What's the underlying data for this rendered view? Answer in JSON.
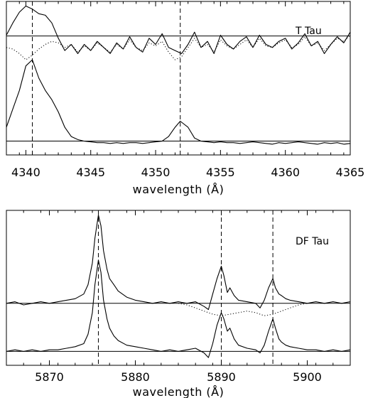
{
  "chart_data": [
    {
      "type": "line",
      "title": "",
      "label": "T Tau",
      "xlabel": "wavelength (Å)",
      "ylabel": "",
      "xlim": [
        4338.5,
        4365
      ],
      "ylim": [
        0,
        1
      ],
      "xticks": [
        4340,
        4345,
        4350,
        4355,
        4360,
        4365
      ],
      "xtick_labels": [
        "4340",
        "4345",
        "4350",
        "4355",
        "4360",
        "4365"
      ],
      "vlines": [
        4340.5,
        4351.9
      ],
      "hlines": [
        0.775,
        0.09
      ],
      "grid": false,
      "legend": "none",
      "series": [
        {
          "style": "solid",
          "x": [
            4338.5,
            4339.0,
            4339.5,
            4340.0,
            4340.5,
            4341.0,
            4341.5,
            4342.0,
            4342.5,
            4343.0,
            4343.5,
            4344.0,
            4344.5,
            4345.0,
            4345.5,
            4346.0,
            4346.5,
            4347.0,
            4347.5,
            4348.0,
            4348.5,
            4349.0,
            4349.5,
            4350.0,
            4350.5,
            4351.0,
            4351.5,
            4352.0,
            4352.5,
            4353.0,
            4353.5,
            4354.0,
            4354.5,
            4355.0,
            4355.5,
            4356.0,
            4356.5,
            4357.0,
            4357.5,
            4358.0,
            4358.5,
            4359.0,
            4359.5,
            4360.0,
            4360.5,
            4361.0,
            4361.5,
            4362.0,
            4362.5,
            4363.0,
            4363.5,
            4364.0,
            4364.5,
            4365.0
          ],
          "y": [
            0.78,
            0.86,
            0.93,
            0.97,
            0.95,
            0.92,
            0.91,
            0.86,
            0.76,
            0.68,
            0.72,
            0.66,
            0.72,
            0.68,
            0.74,
            0.7,
            0.66,
            0.73,
            0.69,
            0.77,
            0.7,
            0.67,
            0.76,
            0.72,
            0.79,
            0.7,
            0.68,
            0.66,
            0.72,
            0.8,
            0.7,
            0.74,
            0.66,
            0.78,
            0.72,
            0.69,
            0.74,
            0.77,
            0.7,
            0.78,
            0.72,
            0.7,
            0.74,
            0.76,
            0.69,
            0.73,
            0.79,
            0.71,
            0.74,
            0.66,
            0.72,
            0.77,
            0.73,
            0.8
          ]
        },
        {
          "style": "dotted",
          "x": [
            4338.5,
            4339.0,
            4339.5,
            4340.0,
            4340.5,
            4341.0,
            4341.5,
            4342.0,
            4342.5,
            4343.0,
            4343.5,
            4344.0,
            4344.5,
            4345.0,
            4345.5,
            4346.0,
            4346.5,
            4347.0,
            4347.5,
            4348.0,
            4348.5,
            4349.0,
            4349.5,
            4350.0,
            4350.5,
            4351.0,
            4351.5,
            4352.0,
            4352.5,
            4353.0,
            4353.5,
            4354.0,
            4354.5,
            4355.0,
            4355.5,
            4356.0,
            4356.5,
            4357.0,
            4357.5,
            4358.0,
            4358.5,
            4359.0,
            4359.5,
            4360.0,
            4360.5,
            4361.0,
            4361.5,
            4362.0,
            4362.5,
            4363.0,
            4363.5,
            4364.0,
            4364.5,
            4365.0
          ],
          "y": [
            0.7,
            0.69,
            0.66,
            0.62,
            0.65,
            0.69,
            0.72,
            0.74,
            0.73,
            0.7,
            0.72,
            0.67,
            0.71,
            0.68,
            0.73,
            0.7,
            0.67,
            0.72,
            0.69,
            0.75,
            0.7,
            0.68,
            0.73,
            0.71,
            0.74,
            0.67,
            0.62,
            0.64,
            0.7,
            0.76,
            0.7,
            0.72,
            0.67,
            0.75,
            0.71,
            0.69,
            0.72,
            0.75,
            0.7,
            0.76,
            0.71,
            0.7,
            0.73,
            0.75,
            0.7,
            0.72,
            0.77,
            0.71,
            0.73,
            0.68,
            0.72,
            0.76,
            0.74,
            0.78
          ]
        },
        {
          "style": "solid",
          "x": [
            4338.5,
            4339.0,
            4339.5,
            4340.0,
            4340.5,
            4341.0,
            4341.5,
            4342.0,
            4342.5,
            4343.0,
            4343.5,
            4344.0,
            4344.5,
            4345.0,
            4345.5,
            4346.0,
            4346.5,
            4347.0,
            4347.5,
            4348.0,
            4348.5,
            4349.0,
            4349.5,
            4350.0,
            4350.5,
            4351.0,
            4351.5,
            4351.9,
            4352.5,
            4353.0,
            4353.5,
            4354.0,
            4354.5,
            4355.0,
            4355.5,
            4356.0,
            4356.5,
            4357.0,
            4357.5,
            4358.0,
            4358.5,
            4359.0,
            4359.5,
            4360.0,
            4360.5,
            4361.0,
            4361.5,
            4362.0,
            4362.5,
            4363.0,
            4363.5,
            4364.0,
            4364.5,
            4365.0
          ],
          "y": [
            0.18,
            0.3,
            0.42,
            0.58,
            0.62,
            0.5,
            0.42,
            0.36,
            0.28,
            0.18,
            0.12,
            0.1,
            0.09,
            0.085,
            0.08,
            0.08,
            0.075,
            0.08,
            0.075,
            0.08,
            0.08,
            0.075,
            0.08,
            0.085,
            0.09,
            0.12,
            0.18,
            0.22,
            0.18,
            0.11,
            0.09,
            0.085,
            0.08,
            0.085,
            0.08,
            0.08,
            0.075,
            0.08,
            0.085,
            0.08,
            0.075,
            0.07,
            0.08,
            0.075,
            0.08,
            0.085,
            0.08,
            0.075,
            0.07,
            0.08,
            0.075,
            0.08,
            0.07,
            0.075
          ]
        }
      ]
    },
    {
      "type": "line",
      "title": "",
      "label": "DF Tau",
      "xlabel": "wavelength (Å)",
      "ylabel": "",
      "xlim": [
        5865,
        5905
      ],
      "ylim": [
        0,
        1
      ],
      "xticks": [
        5870,
        5880,
        5890,
        5900
      ],
      "xtick_labels": [
        "5870",
        "5880",
        "5890",
        "5900"
      ],
      "vlines": [
        5875.7,
        5890.0,
        5896.0
      ],
      "hlines": [
        0.4,
        0.09
      ],
      "grid": false,
      "legend": "none",
      "series": [
        {
          "style": "solid",
          "x": [
            5865,
            5866,
            5867,
            5868,
            5869,
            5870,
            5871,
            5872,
            5873,
            5874,
            5874.5,
            5875,
            5875.3,
            5875.7,
            5876,
            5876.3,
            5876.7,
            5877,
            5877.5,
            5878,
            5879,
            5880,
            5881,
            5882,
            5883,
            5884,
            5885,
            5886,
            5887,
            5888,
            5888.5,
            5889,
            5889.5,
            5890,
            5890.3,
            5890.7,
            5891,
            5891.5,
            5892,
            5893,
            5894,
            5894.5,
            5895,
            5895.5,
            5896,
            5896.3,
            5896.7,
            5897,
            5897.5,
            5898,
            5899,
            5900,
            5901,
            5902,
            5903,
            5904,
            5905
          ],
          "y": [
            0.4,
            0.41,
            0.39,
            0.4,
            0.41,
            0.4,
            0.41,
            0.42,
            0.43,
            0.46,
            0.52,
            0.66,
            0.82,
            0.97,
            0.9,
            0.74,
            0.62,
            0.56,
            0.52,
            0.48,
            0.44,
            0.42,
            0.41,
            0.4,
            0.41,
            0.4,
            0.41,
            0.4,
            0.41,
            0.38,
            0.36,
            0.46,
            0.56,
            0.64,
            0.58,
            0.47,
            0.5,
            0.45,
            0.42,
            0.41,
            0.4,
            0.37,
            0.42,
            0.5,
            0.56,
            0.5,
            0.46,
            0.45,
            0.43,
            0.42,
            0.41,
            0.4,
            0.41,
            0.4,
            0.41,
            0.4,
            0.41
          ]
        },
        {
          "style": "dotted",
          "x": [
            5885,
            5886,
            5887,
            5888,
            5889,
            5890,
            5891,
            5892,
            5893,
            5894,
            5895,
            5896,
            5897,
            5898,
            5899,
            5900
          ],
          "y": [
            0.4,
            0.39,
            0.37,
            0.35,
            0.33,
            0.32,
            0.33,
            0.34,
            0.35,
            0.34,
            0.32,
            0.33,
            0.35,
            0.37,
            0.39,
            0.4
          ]
        },
        {
          "style": "solid",
          "x": [
            5865,
            5866,
            5867,
            5868,
            5869,
            5870,
            5871,
            5872,
            5873,
            5874,
            5874.5,
            5875,
            5875.3,
            5875.7,
            5876,
            5876.3,
            5876.7,
            5877,
            5877.5,
            5878,
            5879,
            5880,
            5881,
            5882,
            5883,
            5884,
            5885,
            5886,
            5887,
            5888,
            5888.5,
            5889,
            5889.5,
            5890,
            5890.3,
            5890.7,
            5891,
            5891.5,
            5892,
            5893,
            5894,
            5894.5,
            5895,
            5895.5,
            5896,
            5896.3,
            5896.7,
            5897,
            5897.5,
            5898,
            5899,
            5900,
            5901,
            5902,
            5903,
            5904,
            5905
          ],
          "y": [
            0.09,
            0.1,
            0.09,
            0.1,
            0.09,
            0.1,
            0.1,
            0.11,
            0.12,
            0.14,
            0.2,
            0.34,
            0.52,
            0.68,
            0.6,
            0.42,
            0.3,
            0.24,
            0.19,
            0.16,
            0.13,
            0.12,
            0.11,
            0.1,
            0.09,
            0.1,
            0.09,
            0.1,
            0.11,
            0.08,
            0.05,
            0.14,
            0.26,
            0.34,
            0.3,
            0.22,
            0.24,
            0.17,
            0.13,
            0.11,
            0.1,
            0.08,
            0.13,
            0.22,
            0.3,
            0.24,
            0.17,
            0.15,
            0.13,
            0.12,
            0.11,
            0.1,
            0.1,
            0.09,
            0.1,
            0.09,
            0.1
          ]
        }
      ]
    }
  ]
}
